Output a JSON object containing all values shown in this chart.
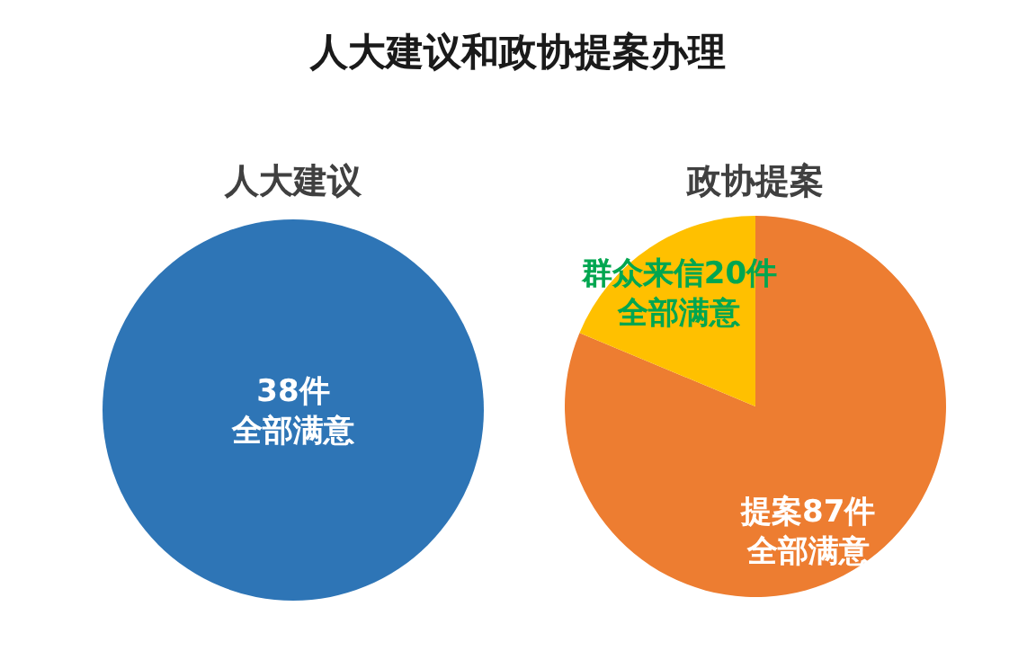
{
  "chart_data": [
    {
      "type": "pie",
      "title": "人大建议和政协提案办理",
      "subtitle": "人大建议",
      "categories": [
        null
      ],
      "values": [
        38
      ],
      "colors": [
        "#2e75b6"
      ],
      "value_labels": [
        "38件全部满意"
      ]
    },
    {
      "type": "pie",
      "title": "政协提案",
      "categories": [
        null,
        null
      ],
      "values": [
        87,
        20
      ],
      "colors": [
        "#ed7d31",
        "#ffc000"
      ],
      "value_labels": [
        "提案87件全部满意",
        "群众来信20件全部满意"
      ]
    }
  ]
}
